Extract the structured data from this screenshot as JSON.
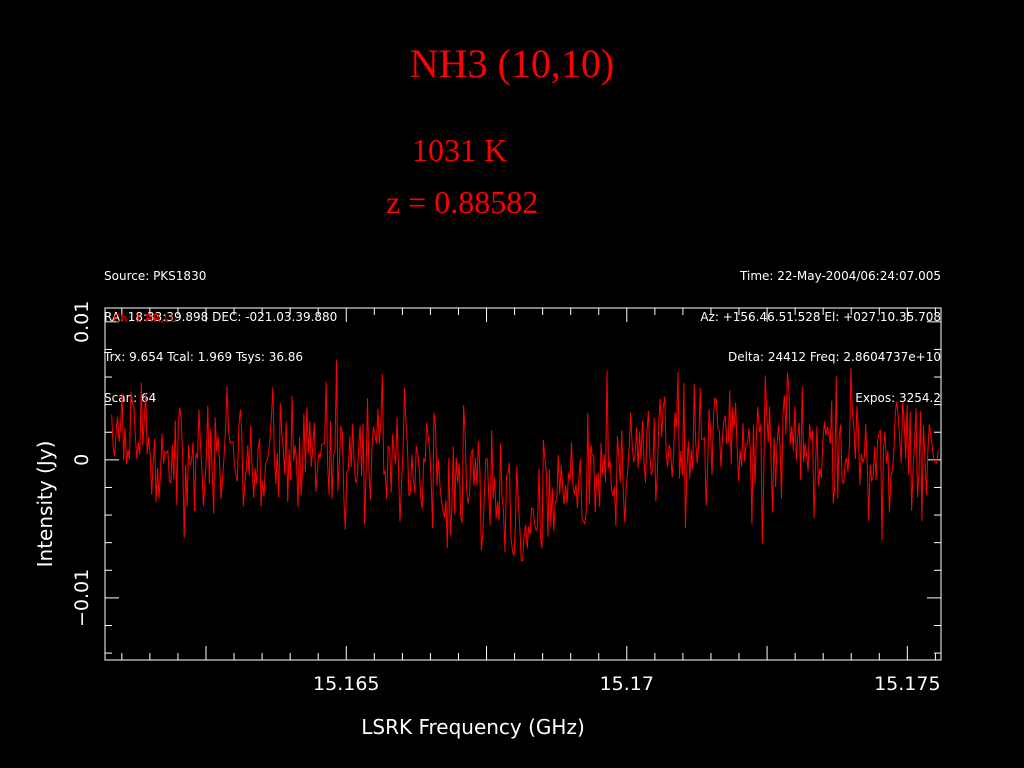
{
  "slide": {
    "title": "NH3 (10,10)",
    "temperature": "1031 K",
    "redshift": "z = 0.88582"
  },
  "header": {
    "left": [
      "Source: PKS1830",
      "RA: 18:33:39.898 DEC: -021.03.39.880",
      "Trx: 9.654 Tcal: 1.969 Tsys: 36.86",
      "Scan: 64"
    ],
    "right": [
      "Time: 22-May-2004/06:24:07.005",
      "Az: +156.46.51.528 El: +027.10.35.708",
      "Delta: 24412 Freq: 2.8604737e+10",
      "Expos: 3254.2"
    ]
  },
  "colors": {
    "background": "#000000",
    "accent": "#ff0000",
    "axis": "#ffffff"
  },
  "chart_data": {
    "type": "line",
    "title": "NH3 (10,10)",
    "xlabel": "LSRK Frequency (GHz)",
    "ylabel": "Intensity (Jy)",
    "legend": "Ch: 1 RR,LL",
    "xlim": [
      15.1607,
      15.1756
    ],
    "ylim": [
      -0.0145,
      0.011
    ],
    "x_ticks": [
      {
        "value": 15.165,
        "label": "15.165"
      },
      {
        "value": 15.17,
        "label": "15.17"
      },
      {
        "value": 15.175,
        "label": "15.175"
      }
    ],
    "y_ticks": [
      {
        "value": 0.01,
        "label": "0.01"
      },
      {
        "value": 0,
        "label": "0"
      },
      {
        "value": -0.01,
        "label": "−0.01"
      }
    ],
    "grid": false,
    "series": [
      {
        "color": "#ff0000",
        "x": [
          15.1608,
          15.1613,
          15.1618,
          15.1623,
          15.1628,
          15.1633,
          15.1638,
          15.1643,
          15.1648,
          15.1653,
          15.1658,
          15.1663,
          15.1668,
          15.1673,
          15.1678,
          15.1683,
          15.1688,
          15.1693,
          15.1698,
          15.1703,
          15.1708,
          15.1713,
          15.1718,
          15.1723,
          15.1728,
          15.1733,
          15.1738,
          15.1743,
          15.1748,
          15.1753
        ],
        "y": [
          0.0005,
          0.001,
          0.0002,
          0.0012,
          0.0006,
          0.001,
          0.0011,
          0.0006,
          0.0009,
          0.0004,
          0.0002,
          0.0,
          -0.0012,
          -0.0023,
          -0.0034,
          -0.0039,
          -0.0028,
          -0.0018,
          -0.0002,
          0.0008,
          0.0015,
          0.0011,
          0.0014,
          0.0008,
          0.0012,
          0.0006,
          0.0009,
          0.0004,
          0.0007,
          0.0002
        ]
      }
    ]
  }
}
